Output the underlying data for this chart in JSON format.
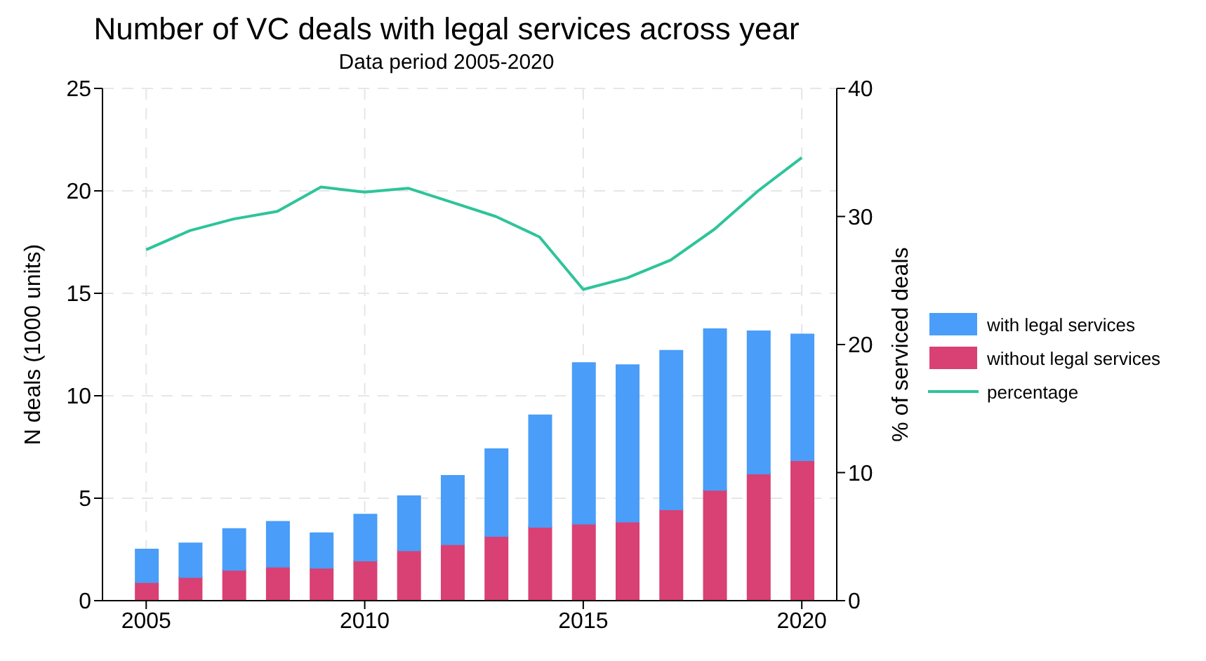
{
  "chart_data": {
    "type": "bar",
    "title": "Number of VC deals with legal services across year",
    "subtitle": "Data period 2005-2020",
    "ylabel": "N deals (1000 units)",
    "y2label": "% of serviced deals",
    "x": [
      2005,
      2006,
      2007,
      2008,
      2009,
      2010,
      2011,
      2012,
      2013,
      2014,
      2015,
      2016,
      2017,
      2018,
      2019,
      2020
    ],
    "stacked": true,
    "series": [
      {
        "name": "without legal services",
        "color": "#d94073",
        "values": [
          0.9,
          1.15,
          1.5,
          1.65,
          1.6,
          1.95,
          2.45,
          2.75,
          3.15,
          3.6,
          3.75,
          3.85,
          4.45,
          5.4,
          6.2,
          6.85
        ]
      },
      {
        "name": "with legal services",
        "color": "#4a9df8",
        "values": [
          1.6,
          1.65,
          2.0,
          2.2,
          1.7,
          2.25,
          2.65,
          3.35,
          4.25,
          5.45,
          7.85,
          7.65,
          7.75,
          7.85,
          6.95,
          6.15
        ]
      },
      {
        "name": "percentage",
        "type": "line",
        "axis": "y2",
        "color": "#2ec49a",
        "values": [
          27.4,
          28.9,
          29.8,
          30.4,
          32.3,
          31.9,
          32.2,
          31.1,
          30.0,
          28.4,
          24.3,
          25.2,
          26.6,
          29.0,
          32.0,
          34.6
        ]
      }
    ],
    "xlim": [
      2004,
      2020.8
    ],
    "xticks": [
      2005,
      2010,
      2015,
      2020
    ],
    "ylim": [
      0,
      25
    ],
    "yticks": [
      0,
      5,
      10,
      15,
      20,
      25
    ],
    "y2lim": [
      0,
      40
    ],
    "y2ticks": [
      0,
      10,
      20,
      30,
      40
    ],
    "grid": true,
    "legend": "right",
    "line_style": "solid",
    "marker": "none"
  }
}
